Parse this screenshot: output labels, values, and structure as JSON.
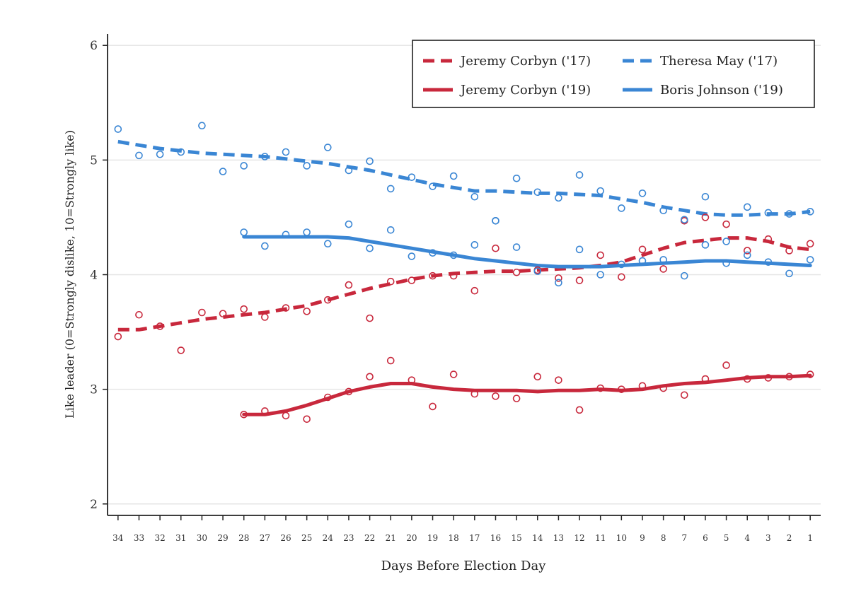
{
  "colors": {
    "red": "#c8283c",
    "blue": "#3a86d4",
    "grid": "#e6e6e6",
    "axis": "#222222"
  },
  "chart_data": {
    "type": "line",
    "title": "",
    "xlabel": "Days Before Election Day",
    "ylabel": "Like leader (0=Strongly dislike, 10=Strongly like)",
    "x_categories": [
      34,
      33,
      32,
      31,
      30,
      29,
      28,
      27,
      26,
      25,
      24,
      23,
      22,
      21,
      20,
      19,
      18,
      17,
      16,
      15,
      14,
      13,
      12,
      11,
      10,
      9,
      8,
      7,
      6,
      5,
      4,
      3,
      2,
      1
    ],
    "ylim": [
      1.9,
      6.1
    ],
    "yticks": [
      2,
      3,
      4,
      5,
      6
    ],
    "grid": "horizontal",
    "legend_position": "top-right",
    "series": [
      {
        "name": "Jeremy Corbyn ('17)",
        "color": "red",
        "style": "dashed",
        "points": [
          [
            34,
            3.46
          ],
          [
            33,
            3.65
          ],
          [
            32,
            3.55
          ],
          [
            31,
            3.34
          ],
          [
            30,
            3.67
          ],
          [
            29,
            3.66
          ],
          [
            28,
            3.7
          ],
          [
            27,
            3.63
          ],
          [
            26,
            3.71
          ],
          [
            25,
            3.68
          ],
          [
            24,
            3.78
          ],
          [
            23,
            3.91
          ],
          [
            22,
            3.62
          ],
          [
            21,
            3.94
          ],
          [
            20,
            3.95
          ],
          [
            19,
            3.99
          ],
          [
            18,
            3.99
          ],
          [
            17,
            3.86
          ],
          [
            16,
            4.23
          ],
          [
            15,
            4.02
          ],
          [
            14,
            4.04
          ],
          [
            13,
            3.97
          ],
          [
            12,
            3.95
          ],
          [
            11,
            4.17
          ],
          [
            10,
            3.98
          ],
          [
            9,
            4.22
          ],
          [
            8,
            4.05
          ],
          [
            7,
            4.47
          ],
          [
            6,
            4.5
          ],
          [
            5,
            4.44
          ],
          [
            4,
            4.21
          ],
          [
            3,
            4.31
          ],
          [
            2,
            4.21
          ],
          [
            1,
            4.27
          ]
        ],
        "smooth": [
          [
            34,
            3.52
          ],
          [
            33,
            3.52
          ],
          [
            32,
            3.55
          ],
          [
            31,
            3.58
          ],
          [
            30,
            3.61
          ],
          [
            29,
            3.63
          ],
          [
            28,
            3.65
          ],
          [
            27,
            3.67
          ],
          [
            26,
            3.7
          ],
          [
            25,
            3.73
          ],
          [
            24,
            3.78
          ],
          [
            23,
            3.83
          ],
          [
            22,
            3.88
          ],
          [
            21,
            3.92
          ],
          [
            20,
            3.96
          ],
          [
            19,
            3.99
          ],
          [
            18,
            4.01
          ],
          [
            17,
            4.02
          ],
          [
            16,
            4.03
          ],
          [
            15,
            4.03
          ],
          [
            14,
            4.04
          ],
          [
            13,
            4.05
          ],
          [
            12,
            4.06
          ],
          [
            11,
            4.08
          ],
          [
            10,
            4.11
          ],
          [
            9,
            4.17
          ],
          [
            8,
            4.23
          ],
          [
            7,
            4.28
          ],
          [
            6,
            4.3
          ],
          [
            5,
            4.32
          ],
          [
            4,
            4.32
          ],
          [
            3,
            4.29
          ],
          [
            2,
            4.24
          ],
          [
            1,
            4.22
          ]
        ]
      },
      {
        "name": "Theresa May ('17)",
        "color": "blue",
        "style": "dashed",
        "points": [
          [
            34,
            5.27
          ],
          [
            33,
            5.04
          ],
          [
            32,
            5.05
          ],
          [
            31,
            5.07
          ],
          [
            30,
            5.3
          ],
          [
            29,
            4.9
          ],
          [
            28,
            4.95
          ],
          [
            27,
            5.03
          ],
          [
            26,
            5.07
          ],
          [
            25,
            4.95
          ],
          [
            24,
            5.11
          ],
          [
            23,
            4.91
          ],
          [
            22,
            4.99
          ],
          [
            21,
            4.75
          ],
          [
            20,
            4.85
          ],
          [
            19,
            4.77
          ],
          [
            18,
            4.86
          ],
          [
            17,
            4.68
          ],
          [
            16,
            4.47
          ],
          [
            15,
            4.84
          ],
          [
            14,
            4.72
          ],
          [
            13,
            4.67
          ],
          [
            12,
            4.87
          ],
          [
            11,
            4.73
          ],
          [
            10,
            4.58
          ],
          [
            9,
            4.71
          ],
          [
            8,
            4.56
          ],
          [
            7,
            4.48
          ],
          [
            6,
            4.68
          ],
          [
            5,
            4.29
          ],
          [
            4,
            4.59
          ],
          [
            3,
            4.54
          ],
          [
            2,
            4.53
          ],
          [
            1,
            4.55
          ]
        ],
        "smooth": [
          [
            34,
            5.16
          ],
          [
            33,
            5.13
          ],
          [
            32,
            5.1
          ],
          [
            31,
            5.08
          ],
          [
            30,
            5.06
          ],
          [
            29,
            5.05
          ],
          [
            28,
            5.04
          ],
          [
            27,
            5.03
          ],
          [
            26,
            5.01
          ],
          [
            25,
            4.99
          ],
          [
            24,
            4.97
          ],
          [
            23,
            4.94
          ],
          [
            22,
            4.91
          ],
          [
            21,
            4.87
          ],
          [
            20,
            4.83
          ],
          [
            19,
            4.79
          ],
          [
            18,
            4.76
          ],
          [
            17,
            4.73
          ],
          [
            16,
            4.73
          ],
          [
            15,
            4.72
          ],
          [
            14,
            4.71
          ],
          [
            13,
            4.71
          ],
          [
            12,
            4.7
          ],
          [
            11,
            4.69
          ],
          [
            10,
            4.66
          ],
          [
            9,
            4.63
          ],
          [
            8,
            4.59
          ],
          [
            7,
            4.56
          ],
          [
            6,
            4.53
          ],
          [
            5,
            4.52
          ],
          [
            4,
            4.52
          ],
          [
            3,
            4.53
          ],
          [
            2,
            4.53
          ],
          [
            1,
            4.55
          ]
        ]
      },
      {
        "name": "Jeremy Corbyn ('19)",
        "color": "red",
        "style": "solid",
        "points": [
          [
            28,
            2.78
          ],
          [
            27,
            2.81
          ],
          [
            26,
            2.77
          ],
          [
            25,
            2.74
          ],
          [
            24,
            2.93
          ],
          [
            23,
            2.98
          ],
          [
            22,
            3.11
          ],
          [
            21,
            3.25
          ],
          [
            20,
            3.08
          ],
          [
            19,
            2.85
          ],
          [
            18,
            3.13
          ],
          [
            17,
            2.96
          ],
          [
            16,
            2.94
          ],
          [
            15,
            2.92
          ],
          [
            14,
            3.11
          ],
          [
            13,
            3.08
          ],
          [
            12,
            2.82
          ],
          [
            11,
            3.01
          ],
          [
            10,
            3.0
          ],
          [
            9,
            3.03
          ],
          [
            8,
            3.01
          ],
          [
            7,
            2.95
          ],
          [
            6,
            3.09
          ],
          [
            5,
            3.21
          ],
          [
            4,
            3.09
          ],
          [
            3,
            3.1
          ],
          [
            2,
            3.11
          ],
          [
            1,
            3.13
          ]
        ],
        "smooth": [
          [
            28,
            2.78
          ],
          [
            27,
            2.78
          ],
          [
            26,
            2.81
          ],
          [
            25,
            2.86
          ],
          [
            24,
            2.92
          ],
          [
            23,
            2.98
          ],
          [
            22,
            3.02
          ],
          [
            21,
            3.05
          ],
          [
            20,
            3.05
          ],
          [
            19,
            3.02
          ],
          [
            18,
            3.0
          ],
          [
            17,
            2.99
          ],
          [
            16,
            2.99
          ],
          [
            15,
            2.99
          ],
          [
            14,
            2.98
          ],
          [
            13,
            2.99
          ],
          [
            12,
            2.99
          ],
          [
            11,
            3.0
          ],
          [
            10,
            2.99
          ],
          [
            9,
            3.0
          ],
          [
            8,
            3.03
          ],
          [
            7,
            3.05
          ],
          [
            6,
            3.06
          ],
          [
            5,
            3.08
          ],
          [
            4,
            3.1
          ],
          [
            3,
            3.11
          ],
          [
            2,
            3.11
          ],
          [
            1,
            3.12
          ]
        ]
      },
      {
        "name": "Boris Johnson ('19)",
        "color": "blue",
        "style": "solid",
        "points": [
          [
            28,
            4.37
          ],
          [
            27,
            4.25
          ],
          [
            26,
            4.35
          ],
          [
            25,
            4.37
          ],
          [
            24,
            4.27
          ],
          [
            23,
            4.44
          ],
          [
            22,
            4.23
          ],
          [
            21,
            4.39
          ],
          [
            20,
            4.16
          ],
          [
            19,
            4.19
          ],
          [
            18,
            4.17
          ],
          [
            17,
            4.26
          ],
          [
            16,
            4.47
          ],
          [
            15,
            4.24
          ],
          [
            14,
            4.03
          ],
          [
            13,
            3.93
          ],
          [
            12,
            4.22
          ],
          [
            11,
            4.0
          ],
          [
            10,
            4.09
          ],
          [
            9,
            4.12
          ],
          [
            8,
            4.13
          ],
          [
            7,
            3.99
          ],
          [
            6,
            4.26
          ],
          [
            5,
            4.1
          ],
          [
            4,
            4.17
          ],
          [
            3,
            4.11
          ],
          [
            2,
            4.01
          ],
          [
            1,
            4.13
          ]
        ],
        "smooth": [
          [
            28,
            4.33
          ],
          [
            27,
            4.33
          ],
          [
            26,
            4.33
          ],
          [
            25,
            4.33
          ],
          [
            24,
            4.33
          ],
          [
            23,
            4.32
          ],
          [
            22,
            4.29
          ],
          [
            21,
            4.26
          ],
          [
            20,
            4.23
          ],
          [
            19,
            4.2
          ],
          [
            18,
            4.17
          ],
          [
            17,
            4.14
          ],
          [
            16,
            4.12
          ],
          [
            15,
            4.1
          ],
          [
            14,
            4.08
          ],
          [
            13,
            4.07
          ],
          [
            12,
            4.07
          ],
          [
            11,
            4.07
          ],
          [
            10,
            4.08
          ],
          [
            9,
            4.09
          ],
          [
            8,
            4.1
          ],
          [
            7,
            4.11
          ],
          [
            6,
            4.12
          ],
          [
            5,
            4.12
          ],
          [
            4,
            4.11
          ],
          [
            3,
            4.1
          ],
          [
            2,
            4.09
          ],
          [
            1,
            4.08
          ]
        ]
      }
    ]
  }
}
